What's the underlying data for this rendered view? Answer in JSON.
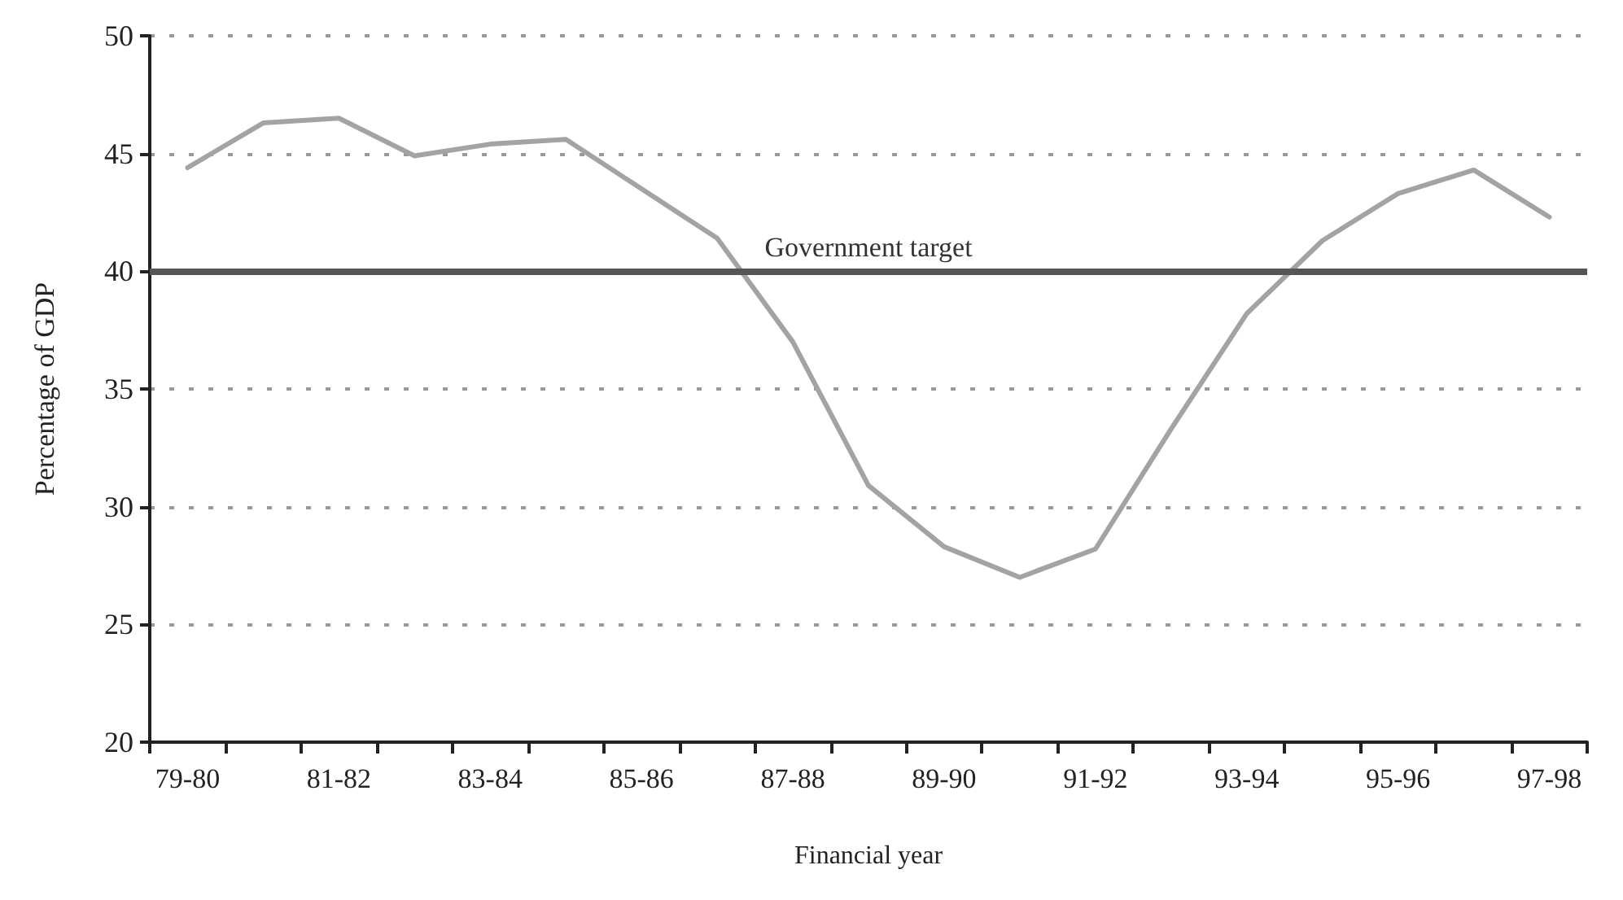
{
  "chart_data": {
    "type": "line",
    "xlabel": "Financial year",
    "ylabel": "Percentage of GDP",
    "categories": [
      "79-80",
      null,
      "81-82",
      null,
      "83-84",
      null,
      "85-86",
      null,
      "87-88",
      null,
      "89-90",
      null,
      "91-92",
      null,
      "93-94",
      null,
      "95-96",
      null,
      "97-98"
    ],
    "series": [
      {
        "color": "#a3a3a3",
        "values": [
          44.4,
          46.3,
          46.5,
          44.9,
          45.4,
          45.6,
          43.5,
          41.4,
          37.0,
          30.9,
          28.3,
          27.0,
          28.2,
          33.3,
          38.2,
          41.3,
          43.3,
          44.3,
          42.3
        ]
      }
    ],
    "ylim": [
      20,
      50
    ],
    "yticks": [
      20,
      25,
      30,
      35,
      40,
      45,
      50
    ],
    "ref_lines": [
      {
        "axis": "y",
        "value": 40,
        "label": "Government target",
        "color": "#555555",
        "line_style": "solid"
      }
    ],
    "grid": "y",
    "marker": "none",
    "line_style": "solid"
  }
}
